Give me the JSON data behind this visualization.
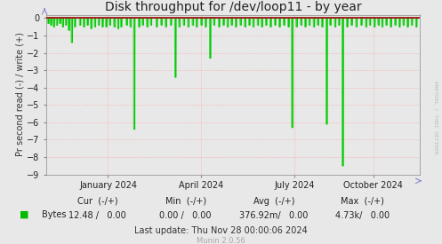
{
  "title": "Disk throughput for /dev/loop11 - by year",
  "ylabel": "Pr second read (-) / write (+)",
  "background_color": "#e8e8e8",
  "plot_bg_color": "#e8e8e8",
  "grid_color": "#ff9999",
  "ylim": [
    -9.0,
    0.2
  ],
  "yticks": [
    0.0,
    -1.0,
    -2.0,
    -3.0,
    -4.0,
    -5.0,
    -6.0,
    -7.0,
    -8.0,
    -9.0
  ],
  "xtick_labels": [
    "January 2024",
    "April 2024",
    "July 2024",
    "October 2024"
  ],
  "xtick_positions": [
    0.165,
    0.415,
    0.665,
    0.875
  ],
  "line_color": "#00cc00",
  "legend_label": "Bytes",
  "legend_color": "#00bb00",
  "footer_line1_left": "Cur  (-/+)",
  "footer_line1_mid1": "Min  (-/+)",
  "footer_line1_mid2": "Avg  (-/+)",
  "footer_line1_right": "Max  (-/+)",
  "footer_line2_left": "12.48 /   0.00",
  "footer_line2_mid1": "0.00 /   0.00",
  "footer_line2_mid2": "376.92m/   0.00",
  "footer_line2_right": "4.73k/   0.00",
  "footer_last_update": "Last update: Thu Nov 28 00:00:06 2024",
  "munin_version": "Munin 2.0.56",
  "rrdtool_label": "RRDTOOL / TOBI OETIKER",
  "title_fontsize": 10,
  "tick_fontsize": 7,
  "ylabel_fontsize": 7,
  "footer_fontsize": 7,
  "spike_positions": [
    0.005,
    0.012,
    0.02,
    0.028,
    0.036,
    0.044,
    0.052,
    0.06,
    0.068,
    0.076,
    0.09,
    0.1,
    0.11,
    0.12,
    0.13,
    0.14,
    0.15,
    0.16,
    0.17,
    0.182,
    0.192,
    0.2,
    0.215,
    0.225,
    0.235,
    0.248,
    0.258,
    0.27,
    0.28,
    0.295,
    0.308,
    0.32,
    0.333,
    0.345,
    0.356,
    0.368,
    0.38,
    0.392,
    0.402,
    0.415,
    0.426,
    0.438,
    0.449,
    0.462,
    0.474,
    0.485,
    0.496,
    0.507,
    0.52,
    0.532,
    0.543,
    0.554,
    0.566,
    0.577,
    0.588,
    0.6,
    0.612,
    0.624,
    0.636,
    0.648,
    0.658,
    0.67,
    0.682,
    0.693,
    0.704,
    0.716,
    0.727,
    0.738,
    0.75,
    0.76,
    0.773,
    0.783,
    0.793,
    0.805,
    0.817,
    0.83,
    0.843,
    0.856,
    0.866,
    0.878,
    0.889,
    0.899,
    0.91,
    0.922,
    0.934,
    0.945,
    0.956,
    0.967,
    0.978,
    0.99
  ],
  "spike_depths": [
    -0.3,
    -0.4,
    -0.5,
    -0.4,
    -0.3,
    -0.5,
    -0.4,
    -0.7,
    -1.4,
    -0.5,
    -0.4,
    -0.5,
    -0.4,
    -0.6,
    -0.5,
    -0.4,
    -0.5,
    -0.5,
    -0.4,
    -0.5,
    -0.6,
    -0.5,
    -0.4,
    -0.5,
    -6.4,
    -0.5,
    -0.4,
    -0.5,
    -0.4,
    -0.5,
    -0.4,
    -0.5,
    -0.4,
    -3.4,
    -0.5,
    -0.4,
    -0.5,
    -0.4,
    -0.5,
    -0.4,
    -0.5,
    -2.3,
    -0.4,
    -0.5,
    -0.4,
    -0.5,
    -0.4,
    -0.5,
    -0.4,
    -0.5,
    -0.4,
    -0.5,
    -0.4,
    -0.5,
    -0.4,
    -0.5,
    -0.4,
    -0.5,
    -0.4,
    -0.5,
    -6.3,
    -0.5,
    -0.4,
    -0.5,
    -0.4,
    -0.5,
    -0.4,
    -0.5,
    -6.1,
    -0.4,
    -0.5,
    -0.4,
    -8.5,
    -0.5,
    -0.4,
    -0.5,
    -0.4,
    -0.5,
    -0.4,
    -0.5,
    -0.4,
    -0.5,
    -0.4,
    -0.5,
    -0.4,
    -0.5,
    -0.4,
    -0.5,
    -0.4,
    -0.5
  ]
}
